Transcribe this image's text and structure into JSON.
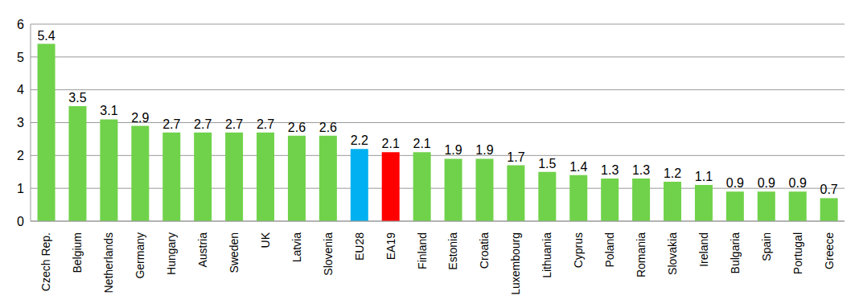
{
  "chart_data": {
    "type": "bar",
    "categories": [
      "Czech Rep.",
      "Belgium",
      "Netherlands",
      "Germany",
      "Hungary",
      "Austria",
      "Sweden",
      "UK",
      "Latvia",
      "Slovenia",
      "EU28",
      "EA19",
      "Finland",
      "Estonia",
      "Croatia",
      "Luxembourg",
      "Lithuania",
      "Cyprus",
      "Poland",
      "Romania",
      "Slovakia",
      "Ireland",
      "Bulgaria",
      "Spain",
      "Portugal",
      "Greece"
    ],
    "values": [
      5.4,
      3.5,
      3.1,
      2.9,
      2.7,
      2.7,
      2.7,
      2.7,
      2.6,
      2.6,
      2.2,
      2.1,
      2.1,
      1.9,
      1.9,
      1.7,
      1.5,
      1.4,
      1.3,
      1.3,
      1.2,
      1.1,
      0.9,
      0.9,
      0.9,
      0.7
    ],
    "colors": [
      "#70d24a",
      "#70d24a",
      "#70d24a",
      "#70d24a",
      "#70d24a",
      "#70d24a",
      "#70d24a",
      "#70d24a",
      "#70d24a",
      "#70d24a",
      "#00b0f0",
      "#ff0000",
      "#70d24a",
      "#70d24a",
      "#70d24a",
      "#70d24a",
      "#70d24a",
      "#70d24a",
      "#70d24a",
      "#70d24a",
      "#70d24a",
      "#70d24a",
      "#70d24a",
      "#70d24a",
      "#70d24a",
      "#70d24a"
    ],
    "ylim": [
      0,
      6
    ],
    "yticks": [
      0,
      1,
      2,
      3,
      4,
      5,
      6
    ],
    "grid": true,
    "data_labels": true
  }
}
